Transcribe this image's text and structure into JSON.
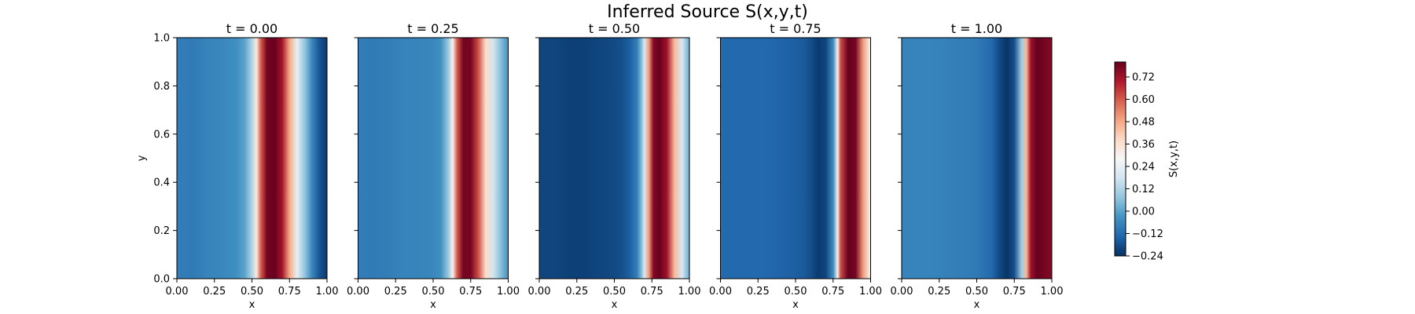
{
  "chart_data": {
    "type": "heatmap",
    "title": "Inferred Source S(x,y,t)",
    "xlabel": "x",
    "ylabel": "y",
    "xlim": [
      0,
      1
    ],
    "ylim": [
      0,
      1
    ],
    "x_ticks": [
      "0.00",
      "0.25",
      "0.50",
      "0.75",
      "1.00"
    ],
    "y_ticks": [
      "0.0",
      "0.2",
      "0.4",
      "0.6",
      "0.8",
      "1.0"
    ],
    "colormap": "RdBu_r",
    "colorbar": {
      "label": "S(x,y,t)",
      "range": [
        -0.24,
        0.8
      ],
      "ticks": [
        "−0.24",
        "−0.12",
        "0.00",
        "0.12",
        "0.24",
        "0.36",
        "0.48",
        "0.60",
        "0.72"
      ],
      "tick_values": [
        -0.24,
        -0.12,
        0.0,
        0.12,
        0.24,
        0.36,
        0.48,
        0.6,
        0.72
      ]
    },
    "panels": [
      {
        "title": "t = 0.00",
        "t": 0.0,
        "profile_x": [
          0,
          0.1,
          0.2,
          0.3,
          0.4,
          0.45,
          0.5,
          0.53,
          0.56,
          0.6,
          0.65,
          0.7,
          0.75,
          0.8,
          0.85,
          0.9,
          0.95,
          1.0
        ],
        "profile_s": [
          -0.08,
          -0.09,
          -0.07,
          -0.06,
          -0.04,
          0.0,
          0.12,
          0.33,
          0.6,
          0.78,
          0.8,
          0.72,
          0.48,
          0.24,
          0.08,
          -0.06,
          -0.17,
          -0.22
        ]
      },
      {
        "title": "t = 0.25",
        "t": 0.25,
        "profile_x": [
          0,
          0.1,
          0.2,
          0.3,
          0.4,
          0.5,
          0.55,
          0.6,
          0.63,
          0.66,
          0.7,
          0.75,
          0.8,
          0.85,
          0.9,
          0.95,
          1.0
        ],
        "profile_s": [
          -0.08,
          -0.09,
          -0.08,
          -0.07,
          -0.07,
          -0.06,
          -0.04,
          0.08,
          0.3,
          0.6,
          0.78,
          0.78,
          0.62,
          0.38,
          0.18,
          0.06,
          -0.04
        ]
      },
      {
        "title": "t = 0.50",
        "t": 0.5,
        "profile_x": [
          0,
          0.1,
          0.2,
          0.3,
          0.4,
          0.5,
          0.55,
          0.6,
          0.65,
          0.68,
          0.7,
          0.73,
          0.76,
          0.8,
          0.85,
          0.9,
          0.95,
          1.0
        ],
        "profile_s": [
          -0.2,
          -0.2,
          -0.21,
          -0.21,
          -0.2,
          -0.19,
          -0.18,
          -0.15,
          -0.08,
          0.05,
          0.2,
          0.5,
          0.76,
          0.8,
          0.72,
          0.45,
          0.2,
          0.02
        ]
      },
      {
        "title": "t = 0.75",
        "t": 0.75,
        "profile_x": [
          0,
          0.1,
          0.2,
          0.3,
          0.4,
          0.5,
          0.55,
          0.6,
          0.65,
          0.7,
          0.75,
          0.78,
          0.8,
          0.85,
          0.9,
          0.95,
          1.0
        ],
        "profile_s": [
          -0.13,
          -0.13,
          -0.13,
          -0.13,
          -0.14,
          -0.15,
          -0.16,
          -0.18,
          -0.22,
          -0.2,
          -0.05,
          0.3,
          0.62,
          0.8,
          0.78,
          0.5,
          0.28
        ]
      },
      {
        "title": "t = 1.00",
        "t": 1.0,
        "profile_x": [
          0,
          0.2,
          0.4,
          0.5,
          0.6,
          0.65,
          0.7,
          0.75,
          0.8,
          0.83,
          0.86,
          0.9,
          0.95,
          1.0
        ],
        "profile_s": [
          -0.07,
          -0.07,
          -0.08,
          -0.09,
          -0.13,
          -0.19,
          -0.23,
          -0.18,
          0.1,
          0.45,
          0.72,
          0.8,
          0.78,
          0.76
        ]
      }
    ]
  }
}
